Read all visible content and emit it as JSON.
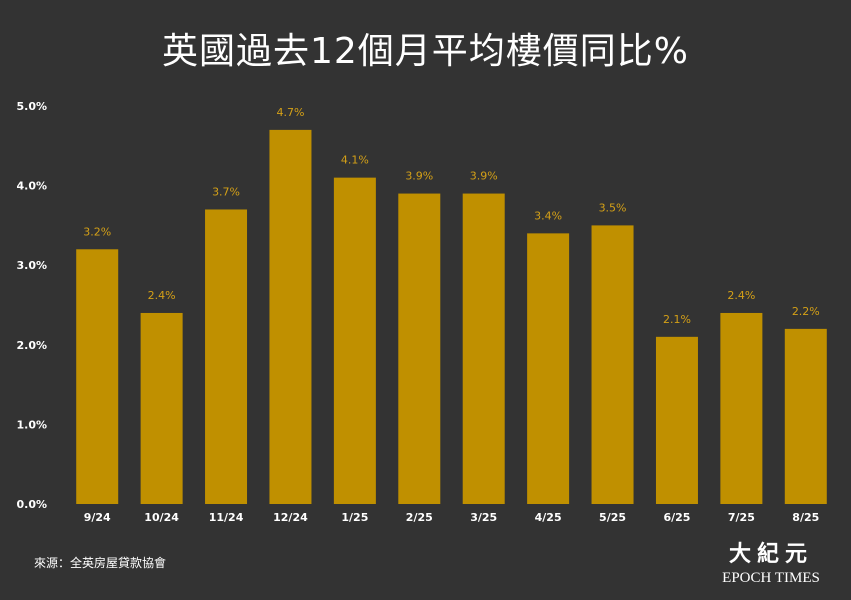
{
  "chart_data": {
    "type": "bar",
    "title": "英國過去12個月平均樓價同比%",
    "categories": [
      "9/24",
      "10/24",
      "11/24",
      "12/24",
      "1/25",
      "2/25",
      "3/25",
      "4/25",
      "5/25",
      "6/25",
      "7/25",
      "8/25"
    ],
    "values": [
      3.2,
      2.4,
      3.7,
      4.7,
      4.1,
      3.9,
      3.9,
      3.4,
      3.5,
      2.1,
      2.4,
      2.2
    ],
    "data_labels": [
      "3.2%",
      "2.4%",
      "3.7%",
      "4.7%",
      "4.1%",
      "3.9%",
      "3.9%",
      "3.4%",
      "3.5%",
      "2.1%",
      "2.4%",
      "2.2%"
    ],
    "y_ticks": [
      "0.0%",
      "1.0%",
      "2.0%",
      "3.0%",
      "4.0%",
      "5.0%"
    ],
    "y_tick_values": [
      0,
      1,
      2,
      3,
      4,
      5
    ],
    "ylim": [
      0,
      5
    ],
    "grid": false,
    "colors": {
      "bar": "#c09000",
      "label": "#d4a017",
      "background": "#333333",
      "text": "#ffffff"
    }
  },
  "source": "來源：全英房屋貸款協會",
  "logo": {
    "cn": "大紀元",
    "en": "EPOCH TIMES"
  }
}
